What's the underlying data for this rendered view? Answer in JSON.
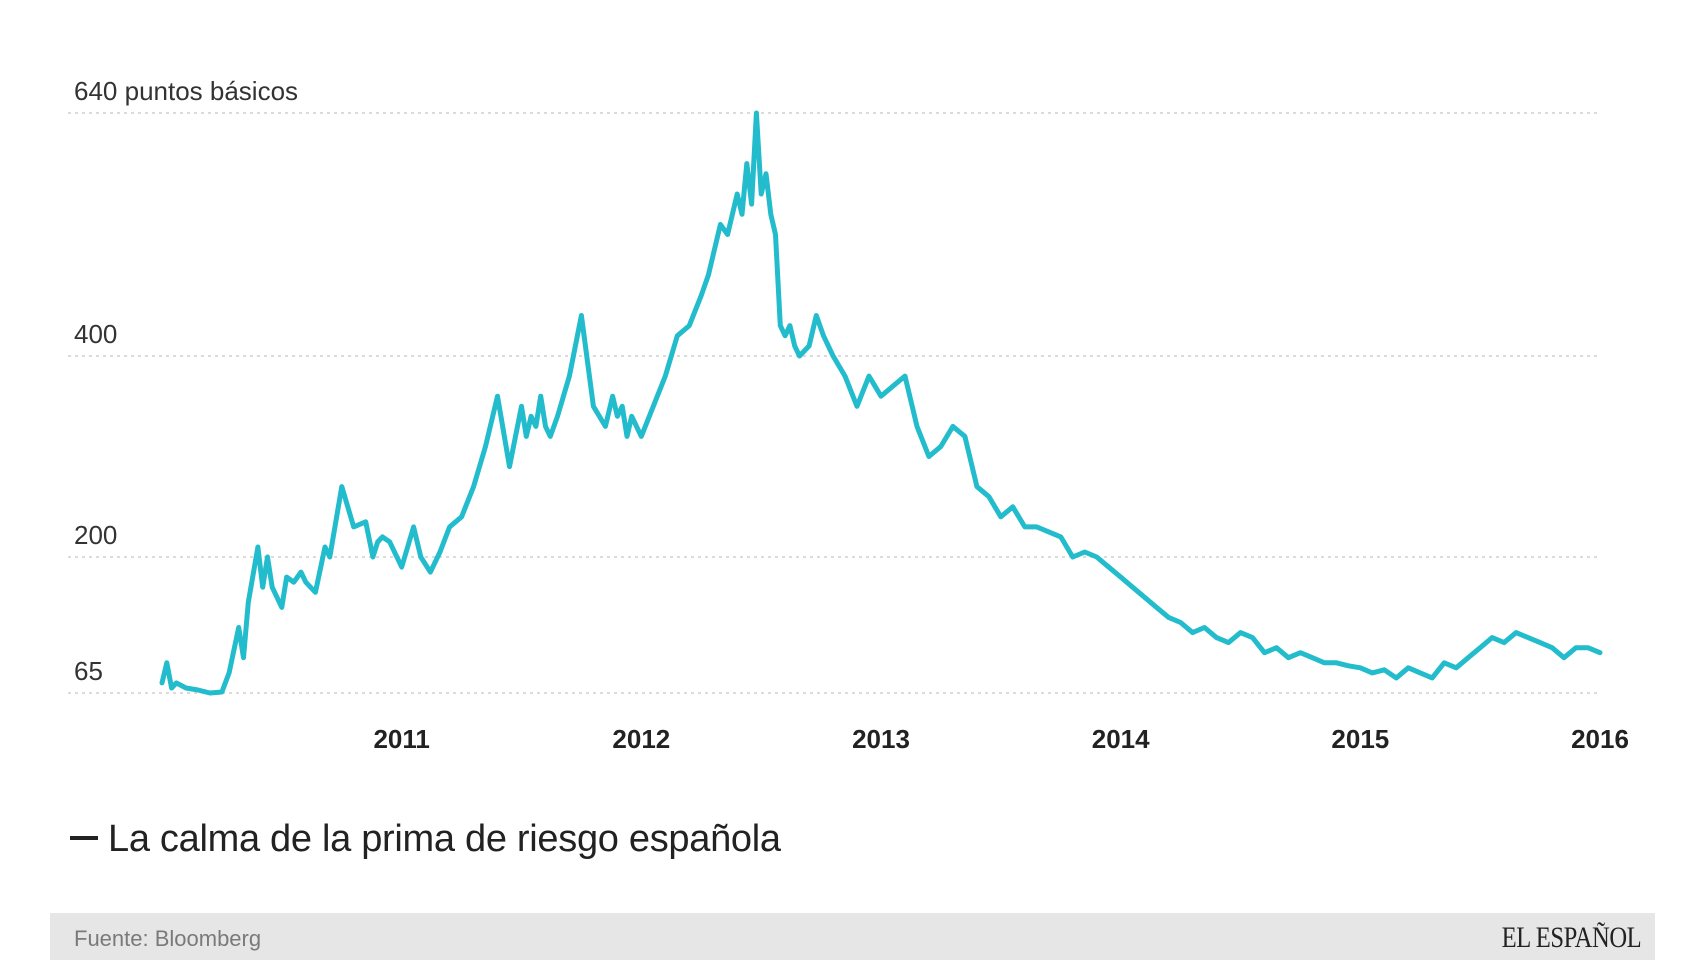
{
  "chart_data": {
    "type": "line",
    "title": "La calma de la prima de riesgo española",
    "ylabel": "puntos básicos",
    "y_tick_labels": [
      "640 puntos básicos",
      "400",
      "200",
      "65"
    ],
    "y_ticks": [
      640,
      400,
      200,
      65
    ],
    "ylim": [
      65,
      640
    ],
    "x_tick_labels": [
      "2011",
      "2012",
      "2013",
      "2014",
      "2015",
      "2016"
    ],
    "x_ticks": [
      2011,
      2012,
      2013,
      2014,
      2015,
      2016
    ],
    "xlim": [
      2010.0,
      2016.0
    ],
    "grid": true,
    "series": [
      {
        "name": "Prima de riesgo española",
        "color": "#22bccc",
        "x": [
          2010.0,
          2010.02,
          2010.04,
          2010.06,
          2010.1,
          2010.15,
          2010.2,
          2010.25,
          2010.28,
          2010.32,
          2010.34,
          2010.36,
          2010.4,
          2010.42,
          2010.44,
          2010.46,
          2010.5,
          2010.52,
          2010.55,
          2010.58,
          2010.6,
          2010.64,
          2010.68,
          2010.7,
          2010.75,
          2010.8,
          2010.85,
          2010.88,
          2010.9,
          2010.92,
          2010.95,
          2011.0,
          2011.05,
          2011.08,
          2011.12,
          2011.16,
          2011.2,
          2011.25,
          2011.3,
          2011.35,
          2011.4,
          2011.45,
          2011.5,
          2011.52,
          2011.54,
          2011.56,
          2011.58,
          2011.6,
          2011.62,
          2011.65,
          2011.7,
          2011.75,
          2011.8,
          2011.85,
          2011.88,
          2011.9,
          2011.92,
          2011.94,
          2011.96,
          2012.0,
          2012.05,
          2012.1,
          2012.15,
          2012.2,
          2012.25,
          2012.28,
          2012.3,
          2012.33,
          2012.36,
          2012.4,
          2012.42,
          2012.44,
          2012.46,
          2012.48,
          2012.5,
          2012.52,
          2012.54,
          2012.56,
          2012.58,
          2012.6,
          2012.62,
          2012.64,
          2012.66,
          2012.7,
          2012.73,
          2012.76,
          2012.8,
          2012.85,
          2012.9,
          2012.95,
          2013.0,
          2013.05,
          2013.1,
          2013.15,
          2013.2,
          2013.25,
          2013.3,
          2013.35,
          2013.4,
          2013.45,
          2013.5,
          2013.55,
          2013.6,
          2013.65,
          2013.7,
          2013.75,
          2013.8,
          2013.85,
          2013.9,
          2013.95,
          2014.0,
          2014.05,
          2014.1,
          2014.15,
          2014.2,
          2014.25,
          2014.3,
          2014.35,
          2014.4,
          2014.45,
          2014.5,
          2014.55,
          2014.6,
          2014.65,
          2014.7,
          2014.75,
          2014.8,
          2014.85,
          2014.9,
          2014.95,
          2015.0,
          2015.05,
          2015.1,
          2015.15,
          2015.2,
          2015.25,
          2015.3,
          2015.35,
          2015.4,
          2015.45,
          2015.5,
          2015.55,
          2015.6,
          2015.65,
          2015.7,
          2015.75,
          2015.8,
          2015.85,
          2015.9,
          2015.95,
          2016.0
        ],
        "values": [
          75,
          95,
          70,
          75,
          70,
          68,
          65,
          66,
          85,
          130,
          100,
          155,
          210,
          170,
          200,
          170,
          150,
          180,
          175,
          185,
          175,
          165,
          210,
          200,
          270,
          230,
          235,
          200,
          215,
          220,
          215,
          190,
          230,
          200,
          185,
          205,
          230,
          240,
          270,
          310,
          360,
          290,
          350,
          320,
          340,
          330,
          360,
          330,
          320,
          340,
          380,
          440,
          350,
          330,
          360,
          340,
          350,
          320,
          340,
          320,
          350,
          380,
          420,
          430,
          460,
          480,
          500,
          530,
          520,
          560,
          540,
          590,
          550,
          640,
          560,
          580,
          540,
          520,
          430,
          420,
          430,
          410,
          400,
          410,
          440,
          420,
          400,
          380,
          350,
          380,
          360,
          370,
          380,
          330,
          300,
          310,
          330,
          320,
          270,
          260,
          240,
          250,
          230,
          230,
          225,
          220,
          200,
          205,
          200,
          190,
          180,
          170,
          160,
          150,
          140,
          135,
          125,
          130,
          120,
          115,
          125,
          120,
          105,
          110,
          100,
          105,
          100,
          95,
          95,
          92,
          90,
          85,
          88,
          80,
          90,
          85,
          80,
          95,
          90,
          100,
          110,
          120,
          115,
          125,
          120,
          115,
          110,
          100,
          110,
          110,
          105
        ]
      }
    ]
  },
  "footer": {
    "source": "Fuente: Bloomberg",
    "brand": "EL ESPAÑOL"
  }
}
